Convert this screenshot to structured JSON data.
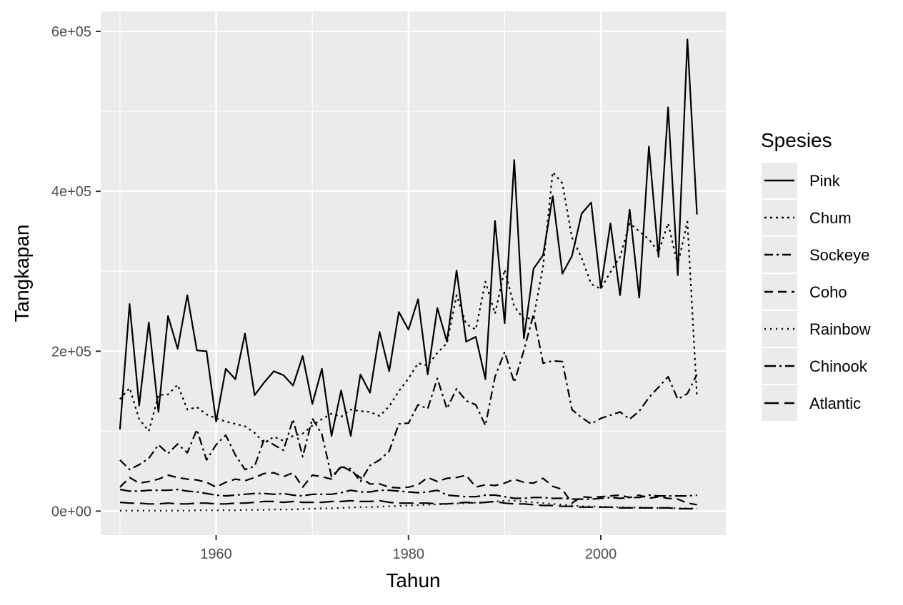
{
  "chart_data": {
    "type": "line",
    "title": "",
    "xlabel": "Tahun",
    "ylabel": "Tangkapan",
    "xlim": [
      1948,
      2013
    ],
    "ylim": [
      -30000,
      625000
    ],
    "x_ticks": [
      1960,
      1980,
      2000
    ],
    "x_tick_labels": [
      "1960",
      "1980",
      "2000"
    ],
    "y_ticks": [
      0,
      200000,
      400000,
      600000
    ],
    "y_tick_labels": [
      "0e+00",
      "2e+05",
      "4e+05",
      "6e+05"
    ],
    "grid": true,
    "legend": {
      "title": "Spesies",
      "position": "right"
    },
    "line_color": "#000000",
    "panel_color": "#ebebeb",
    "x": [
      1950,
      1951,
      1952,
      1953,
      1954,
      1955,
      1956,
      1957,
      1958,
      1959,
      1960,
      1961,
      1962,
      1963,
      1964,
      1965,
      1966,
      1967,
      1968,
      1969,
      1970,
      1971,
      1972,
      1973,
      1974,
      1975,
      1976,
      1977,
      1978,
      1979,
      1980,
      1981,
      1982,
      1983,
      1984,
      1985,
      1986,
      1987,
      1988,
      1989,
      1990,
      1991,
      1992,
      1993,
      1994,
      1995,
      1996,
      1997,
      1998,
      1999,
      2000,
      2001,
      2002,
      2003,
      2004,
      2005,
      2006,
      2007,
      2008,
      2009,
      2010
    ],
    "series": [
      {
        "name": "Pink",
        "dash": "solid",
        "values": [
          102000,
          259000,
          132000,
          236000,
          124000,
          244000,
          203000,
          270000,
          201000,
          200000,
          112000,
          178000,
          165000,
          222000,
          145000,
          161000,
          175000,
          170000,
          157000,
          194000,
          134000,
          178000,
          94000,
          151000,
          94000,
          171000,
          148000,
          224000,
          175000,
          249000,
          227000,
          265000,
          171000,
          254000,
          212000,
          301000,
          212000,
          218000,
          165000,
          363000,
          235000,
          439000,
          216000,
          303000,
          320000,
          394000,
          297000,
          319000,
          372000,
          386000,
          279000,
          360000,
          270000,
          377000,
          267000,
          456000,
          318000,
          505000,
          295000,
          590000,
          371000
        ]
      },
      {
        "name": "Chum",
        "dash": "dotted",
        "values": [
          140000,
          154000,
          115000,
          100000,
          145000,
          146000,
          158000,
          127000,
          130000,
          121000,
          116000,
          112000,
          109000,
          106000,
          98000,
          85000,
          93000,
          88000,
          94000,
          97000,
          107000,
          115000,
          122000,
          118000,
          127000,
          125000,
          124000,
          119000,
          131000,
          150000,
          166000,
          185000,
          182000,
          198000,
          210000,
          270000,
          234000,
          227000,
          287000,
          247000,
          302000,
          256000,
          240000,
          242000,
          306000,
          424000,
          410000,
          342000,
          317000,
          284000,
          278000,
          299000,
          318000,
          360000,
          350000,
          340000,
          324000,
          360000,
          308000,
          362000,
          144000
        ]
      },
      {
        "name": "Sockeye",
        "dash": "dashdot",
        "values": [
          64000,
          52000,
          58000,
          66000,
          83000,
          72000,
          84000,
          73000,
          102000,
          64000,
          83000,
          95000,
          70000,
          52000,
          56000,
          90000,
          83000,
          76000,
          115000,
          68000,
          116000,
          96000,
          43000,
          55000,
          53000,
          37000,
          57000,
          64000,
          75000,
          109000,
          110000,
          133000,
          128000,
          166000,
          128000,
          153000,
          138000,
          133000,
          107000,
          168000,
          199000,
          161000,
          201000,
          246000,
          185000,
          188000,
          187000,
          127000,
          117000,
          109000,
          116000,
          120000,
          124000,
          115000,
          125000,
          142000,
          155000,
          168000,
          140000,
          147000,
          171000
        ]
      },
      {
        "name": "Coho",
        "dash": "dashed",
        "values": [
          30000,
          42000,
          35000,
          37000,
          40000,
          45000,
          42000,
          40000,
          39000,
          36000,
          30000,
          36000,
          40000,
          38000,
          42000,
          47000,
          48000,
          43000,
          48000,
          30000,
          45000,
          43000,
          40000,
          57000,
          50000,
          42000,
          34000,
          34000,
          30000,
          29000,
          30000,
          33000,
          42000,
          37000,
          41000,
          42000,
          45000,
          30000,
          33000,
          32000,
          35000,
          40000,
          36000,
          35000,
          41000,
          31000,
          27000,
          10000,
          18000,
          17000,
          18000,
          19000,
          20000,
          17000,
          20000,
          16000,
          18000,
          16000,
          15000,
          10000,
          8000
        ]
      },
      {
        "name": "Rainbow",
        "dash": "dotted-fine",
        "values": [
          500,
          500,
          500,
          500,
          500,
          500,
          500,
          500,
          1000,
          1000,
          1000,
          1000,
          1000,
          1500,
          1500,
          1500,
          2000,
          2000,
          2000,
          2500,
          3000,
          3500,
          3500,
          4000,
          4500,
          5000,
          5000,
          5500,
          6000,
          6500,
          7000,
          7500,
          8000,
          8500,
          9000,
          9500,
          10000,
          10500,
          11000,
          12000,
          13000,
          13000,
          12000,
          11000,
          10000,
          9000,
          8000,
          7000,
          6000,
          6000,
          5500,
          5000,
          5000,
          4500,
          4500,
          4000,
          4000,
          4000,
          3500,
          3500,
          3000
        ]
      },
      {
        "name": "Chinook",
        "dash": "longdashdot",
        "values": [
          27000,
          25000,
          25000,
          26000,
          26000,
          26000,
          27000,
          25000,
          24000,
          22000,
          20000,
          19000,
          20000,
          21000,
          22000,
          22000,
          21000,
          22000,
          20000,
          19000,
          21000,
          21000,
          21000,
          23000,
          26000,
          24000,
          24000,
          26000,
          26000,
          25000,
          24000,
          23000,
          24000,
          26000,
          20000,
          19000,
          18000,
          18000,
          20000,
          20000,
          18000,
          16000,
          16000,
          17000,
          17000,
          16000,
          16000,
          15000,
          15000,
          15000,
          16000,
          17000,
          16000,
          17000,
          17000,
          20000,
          19000,
          19000,
          19000,
          19000,
          20000
        ]
      },
      {
        "name": "Atlantic",
        "dash": "longdash",
        "values": [
          11000,
          10000,
          10000,
          9000,
          9000,
          10000,
          9000,
          9000,
          10000,
          10000,
          9000,
          9000,
          10000,
          10000,
          11000,
          12000,
          12000,
          11000,
          12000,
          11000,
          11000,
          11000,
          12000,
          12000,
          13000,
          12000,
          12000,
          13000,
          11000,
          10000,
          10000,
          10000,
          10000,
          9000,
          9000,
          10000,
          11000,
          10000,
          11000,
          12000,
          10000,
          9000,
          9000,
          8000,
          7000,
          7000,
          6000,
          6000,
          5000,
          5000,
          5000,
          5000,
          4000,
          4000,
          4000,
          4000,
          4000,
          4000,
          3000,
          3000,
          3000
        ]
      }
    ]
  }
}
